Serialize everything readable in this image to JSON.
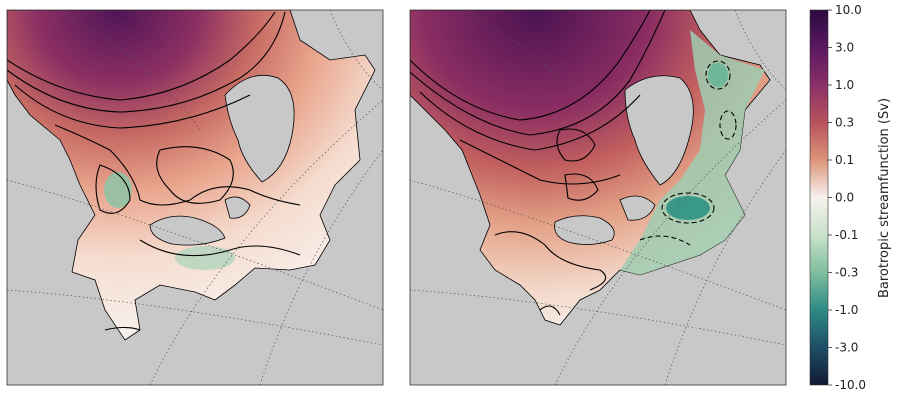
{
  "chart_data": {
    "type": "heatmap",
    "description_kind": "two map panels of barotropic streamfunction with a shared colorbar",
    "panels": [
      {
        "name": "left-panel",
        "land_color": "#c8c8c8",
        "contour_color": "#000000"
      },
      {
        "name": "right-panel",
        "land_color": "#c8c8c8",
        "contour_color": "#000000"
      }
    ],
    "colorbar": {
      "label": "Barotropic streamfunction (Sv)",
      "scale": "symmetric-log",
      "ticks": [
        "10.0",
        "3.0",
        "1.0",
        "0.3",
        "0.1",
        "0.0",
        "-0.1",
        "-0.3",
        "-1.0",
        "-3.0",
        "-10.0"
      ],
      "tick_values": [
        10.0,
        3.0,
        1.0,
        0.3,
        0.1,
        0.0,
        -0.1,
        -0.3,
        -1.0,
        -3.0,
        -10.0
      ],
      "colors": [
        "#3a0f4f",
        "#7a2266",
        "#b8535d",
        "#dd8e76",
        "#efc6b4",
        "#f7f2ef",
        "#cfe3cf",
        "#8cc4a6",
        "#3f9a8b",
        "#1f5f6e",
        "#17223f"
      ]
    }
  }
}
